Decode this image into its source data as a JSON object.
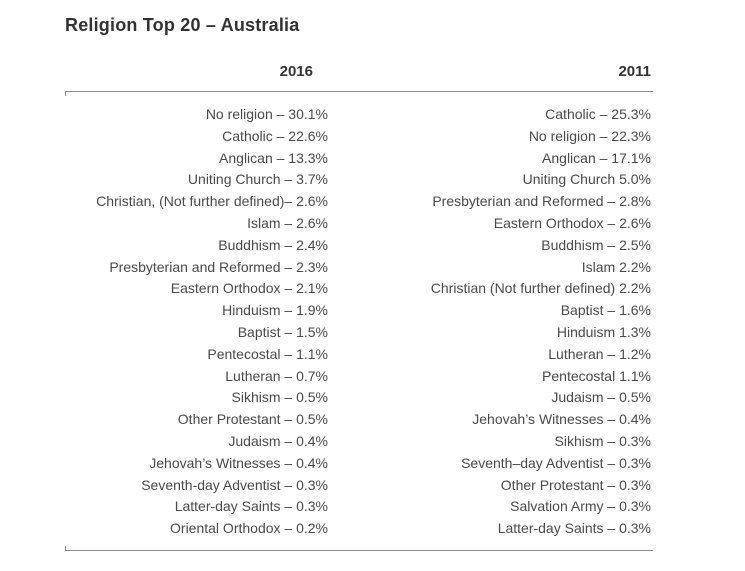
{
  "title": "Religion Top 20 – Australia",
  "table": {
    "columns": [
      {
        "year": "2016",
        "rows": [
          "No religion – 30.1%",
          "Catholic – 22.6%",
          "Anglican – 13.3%",
          "Uniting Church – 3.7%",
          "Christian, (Not further defined)– 2.6%",
          "Islam – 2.6%",
          "Buddhism – 2.4%",
          "Presbyterian and Reformed – 2.3%",
          "Eastern Orthodox – 2.1%",
          "Hinduism – 1.9%",
          "Baptist – 1.5%",
          "Pentecostal – 1.1%",
          "Lutheran – 0.7%",
          "Sikhism – 0.5%",
          "Other Protestant – 0.5%",
          "Judaism – 0.4%",
          "Jehovah’s Witnesses – 0.4%",
          "Seventh-day Adventist – 0.3%",
          "Latter-day Saints – 0.3%",
          "Oriental Orthodox – 0.2%"
        ]
      },
      {
        "year": "2011",
        "rows": [
          "Catholic – 25.3%",
          "No religion – 22.3%",
          "Anglican – 17.1%",
          "Uniting Church 5.0%",
          "Presbyterian and Reformed – 2.8%",
          "Eastern Orthodox – 2.6%",
          "Buddhism – 2.5%",
          "Islam 2.2%",
          "Christian (Not further defined) 2.2%",
          "Baptist – 1.6%",
          "Hinduism 1.3%",
          "Lutheran – 1.2%",
          "Pentecostal 1.1%",
          "Judaism – 0.5%",
          "Jehovah’s Witnesses – 0.4%",
          "Sikhism – 0.3%",
          "Seventh–day Adventist – 0.3%",
          "Other Protestant – 0.3%",
          "Salvation Army – 0.3%",
          "Latter-day Saints – 0.3%"
        ]
      }
    ]
  },
  "chart_data": {
    "type": "table",
    "title": "Religion Top 20 – Australia",
    "columns": [
      "2016",
      "2011"
    ],
    "series": [
      {
        "name": "2016",
        "entries": [
          {
            "religion": "No religion",
            "percent": 30.1
          },
          {
            "religion": "Catholic",
            "percent": 22.6
          },
          {
            "religion": "Anglican",
            "percent": 13.3
          },
          {
            "religion": "Uniting Church",
            "percent": 3.7
          },
          {
            "religion": "Christian, (Not further defined)",
            "percent": 2.6
          },
          {
            "religion": "Islam",
            "percent": 2.6
          },
          {
            "religion": "Buddhism",
            "percent": 2.4
          },
          {
            "religion": "Presbyterian and Reformed",
            "percent": 2.3
          },
          {
            "religion": "Eastern Orthodox",
            "percent": 2.1
          },
          {
            "religion": "Hinduism",
            "percent": 1.9
          },
          {
            "religion": "Baptist",
            "percent": 1.5
          },
          {
            "religion": "Pentecostal",
            "percent": 1.1
          },
          {
            "religion": "Lutheran",
            "percent": 0.7
          },
          {
            "religion": "Sikhism",
            "percent": 0.5
          },
          {
            "religion": "Other Protestant",
            "percent": 0.5
          },
          {
            "religion": "Judaism",
            "percent": 0.4
          },
          {
            "religion": "Jehovah’s Witnesses",
            "percent": 0.4
          },
          {
            "religion": "Seventh-day Adventist",
            "percent": 0.3
          },
          {
            "religion": "Latter-day Saints",
            "percent": 0.3
          },
          {
            "religion": "Oriental Orthodox",
            "percent": 0.2
          }
        ]
      },
      {
        "name": "2011",
        "entries": [
          {
            "religion": "Catholic",
            "percent": 25.3
          },
          {
            "religion": "No religion",
            "percent": 22.3
          },
          {
            "religion": "Anglican",
            "percent": 17.1
          },
          {
            "religion": "Uniting Church",
            "percent": 5.0
          },
          {
            "religion": "Presbyterian and Reformed",
            "percent": 2.8
          },
          {
            "religion": "Eastern Orthodox",
            "percent": 2.6
          },
          {
            "religion": "Buddhism",
            "percent": 2.5
          },
          {
            "religion": "Islam",
            "percent": 2.2
          },
          {
            "religion": "Christian (Not further defined)",
            "percent": 2.2
          },
          {
            "religion": "Baptist",
            "percent": 1.6
          },
          {
            "religion": "Hinduism",
            "percent": 1.3
          },
          {
            "religion": "Lutheran",
            "percent": 1.2
          },
          {
            "religion": "Pentecostal",
            "percent": 1.1
          },
          {
            "religion": "Judaism",
            "percent": 0.5
          },
          {
            "religion": "Jehovah’s Witnesses",
            "percent": 0.4
          },
          {
            "religion": "Sikhism",
            "percent": 0.3
          },
          {
            "religion": "Seventh–day Adventist",
            "percent": 0.3
          },
          {
            "religion": "Other Protestant",
            "percent": 0.3
          },
          {
            "religion": "Salvation Army",
            "percent": 0.3
          },
          {
            "religion": "Latter-day Saints",
            "percent": 0.3
          }
        ]
      }
    ]
  },
  "colors": {
    "title_text": "#323232",
    "body_text": "#4a4a4a",
    "rule": "#8a8a8a",
    "background": "#ffffff"
  }
}
